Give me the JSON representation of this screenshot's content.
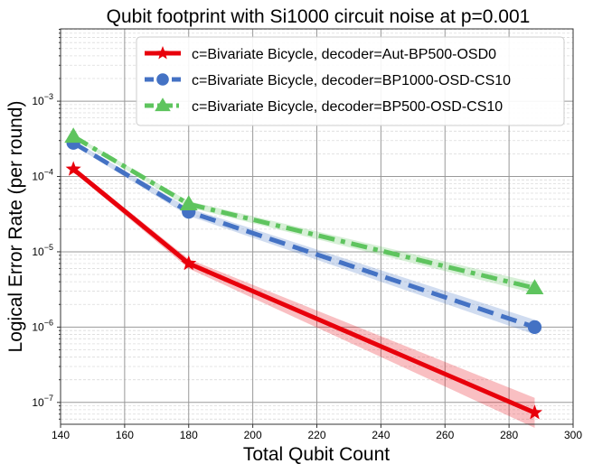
{
  "chart_data": {
    "type": "line",
    "title": "Qubit footprint with Si1000 circuit noise at p=0.001",
    "xlabel": "Total Qubit Count",
    "ylabel": "Logical Error Rate (per round)",
    "xlim": [
      140,
      300
    ],
    "ylim_log10": [
      -7.29,
      -2.04
    ],
    "yscale": "log",
    "grid": true,
    "legend_position": "top-right",
    "x_ticks": [
      140,
      160,
      180,
      200,
      220,
      240,
      260,
      280,
      300
    ],
    "x_tick_labels": [
      "140",
      "160",
      "180",
      "200",
      "220",
      "240",
      "260",
      "280",
      "300"
    ],
    "y_ticks_exp": [
      -3,
      -4,
      -5,
      -6,
      -7
    ],
    "series": [
      {
        "name": "c=Bivariate Bicycle, decoder=Aut-BP500-OSD0",
        "color": "#e8000b",
        "marker": "star",
        "linestyle": "solid",
        "x": [
          144,
          180,
          288
        ],
        "y": [
          0.000125,
          7e-06,
          7.3e-08
        ],
        "y_low": [
          0.000115,
          6e-06,
          4.6e-08
        ],
        "y_high": [
          0.000135,
          8e-06,
          1.15e-07
        ]
      },
      {
        "name": "c=Bivariate Bicycle, decoder=BP1000-OSD-CS10",
        "color": "#4472c4",
        "marker": "circle",
        "linestyle": "dashed",
        "x": [
          144,
          180,
          288
        ],
        "y": [
          0.00028,
          3.4e-05,
          1e-06
        ],
        "y_low": [
          0.00026,
          3e-05,
          8e-07
        ],
        "y_high": [
          0.0003,
          3.8e-05,
          1.25e-06
        ]
      },
      {
        "name": "c=Bivariate Bicycle, decoder=BP500-OSD-CS10",
        "color": "#5ec45e",
        "marker": "triangle",
        "linestyle": "dashdot",
        "x": [
          144,
          180,
          288
        ],
        "y": [
          0.00034,
          4.3e-05,
          3.3e-06
        ],
        "y_low": [
          0.00032,
          3.9e-05,
          2.8e-06
        ],
        "y_high": [
          0.00036,
          4.7e-05,
          3.9e-06
        ]
      }
    ]
  }
}
